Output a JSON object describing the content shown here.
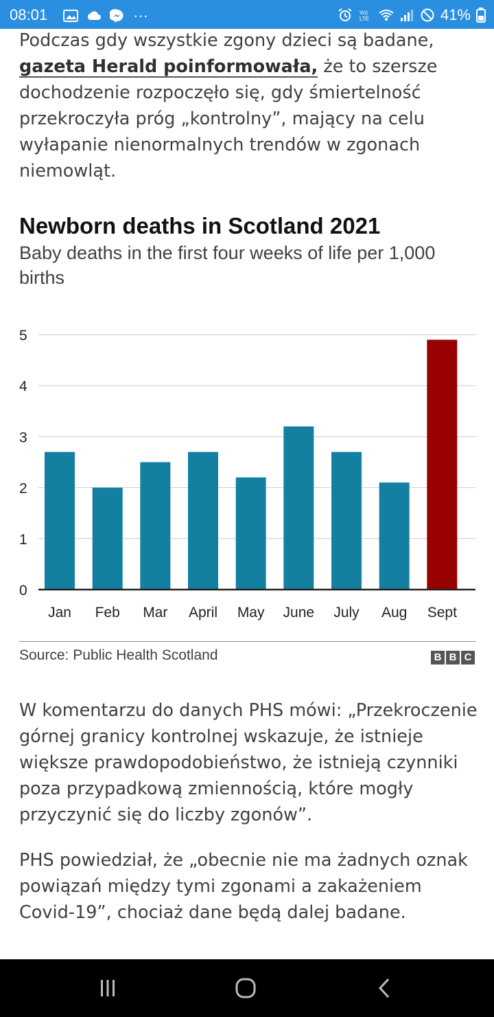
{
  "status_bar": {
    "time": "08:01",
    "battery": "41%",
    "more": "···",
    "icons": [
      "gallery-icon",
      "cloud-icon",
      "messenger-icon",
      "alarm-icon",
      "volte-icon",
      "wifi-icon",
      "signal-icon",
      "do-not-disturb-icon"
    ]
  },
  "article": {
    "p1_text": "Podczas gdy wszystkie zgony dzieci są badane, ",
    "p1_link": "gazeta Herald poinformowała,",
    "p1_rest": " że to szersze dochodzenie rozpoczęło się, gdy śmiertelność przekroczyła próg „kontrolny”, mający na celu wyłapanie nienormalnych trendów w zgonach niemowląt.",
    "p2": "W komentarzu do danych PHS mówi: „Przekroczenie górnej granicy kontrolnej wskazuje, że istnieje większe prawdopodobieństwo, że istnieją czynniki poza przypadkową zmiennością, które mogły przyczynić się do liczby zgonów”.",
    "p3": "PHS powiedział, że „obecnie nie ma żadnych oznak powiązań między tymi zgonami a zakażeniem Covid-19”, chociaż dane będą dalej badane."
  },
  "chart": {
    "source": "Source: Public Health Scotland",
    "logo": [
      "B",
      "B",
      "C"
    ]
  },
  "chart_data": {
    "type": "bar",
    "title": "Newborn deaths in Scotland 2021",
    "subtitle": "Baby deaths in the first four weeks of life per 1,000 births",
    "categories": [
      "Jan",
      "Feb",
      "Mar",
      "April",
      "May",
      "June",
      "July",
      "Aug",
      "Sept"
    ],
    "values": [
      2.7,
      2.0,
      2.5,
      2.7,
      2.2,
      3.2,
      2.7,
      2.1,
      4.9
    ],
    "colors": [
      "#1380a1",
      "#1380a1",
      "#1380a1",
      "#1380a1",
      "#1380a1",
      "#1380a1",
      "#1380a1",
      "#1380a1",
      "#990000"
    ],
    "ylim": [
      0,
      5
    ],
    "yticks": [
      0,
      1,
      2,
      3,
      4,
      5
    ],
    "grid": true,
    "xlabel": "",
    "ylabel": ""
  },
  "nav_bar": {
    "buttons": [
      "recent-apps-icon",
      "home-icon",
      "back-icon"
    ]
  }
}
